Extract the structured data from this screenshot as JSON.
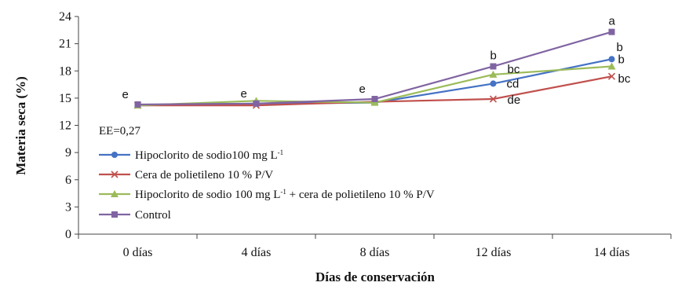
{
  "chart_data": {
    "type": "line",
    "xlabel": "Días de conservación",
    "ylabel": "Materia seca (%)",
    "ylim": [
      0,
      24
    ],
    "yticks": [
      0,
      3,
      6,
      9,
      12,
      15,
      18,
      21,
      24
    ],
    "categories": [
      "0 días",
      "4 días",
      "8 días",
      "12 días",
      "14 días"
    ],
    "note": "EE=0,27",
    "grid": false,
    "legend_position": "bottom-left",
    "series": [
      {
        "name": "Hipoclorito de sodio100 mg L-1",
        "color": "#4472C4",
        "marker": "circle",
        "values": [
          14.2,
          14.4,
          14.5,
          16.6,
          19.3
        ],
        "labels": [
          "",
          "",
          "",
          "cd",
          "b"
        ]
      },
      {
        "name": "Cera de polietileno 10 % P/V",
        "color": "#C0504D",
        "marker": "x",
        "values": [
          14.2,
          14.2,
          14.6,
          14.9,
          17.4
        ],
        "labels": [
          "",
          "",
          "",
          "de",
          "bc"
        ]
      },
      {
        "name": "Hipoclorito de sodio 100 mg L-1 + cera de polietileno 10 % P/V",
        "color": "#9BBB59",
        "marker": "triangle",
        "values": [
          14.2,
          14.7,
          14.5,
          17.6,
          18.5
        ],
        "labels": [
          "",
          "",
          "",
          "bc",
          "b"
        ]
      },
      {
        "name": "Control",
        "color": "#8064A2",
        "marker": "square",
        "values": [
          14.3,
          14.4,
          14.9,
          18.5,
          22.3
        ],
        "labels": [
          "e",
          "e",
          "e",
          "b",
          "a"
        ]
      }
    ]
  },
  "legend": {
    "items": [
      {
        "text": "Hipoclorito de sodio100 mg L",
        "sup": "-1"
      },
      {
        "text": "Cera de polietileno 10 %  P/V",
        "sup": ""
      },
      {
        "text": "Hipoclorito de sodio 100 mg L",
        "sup": "-1",
        "after": "  + cera de polietileno  10 % P/V"
      },
      {
        "text": "Control",
        "sup": ""
      }
    ]
  }
}
